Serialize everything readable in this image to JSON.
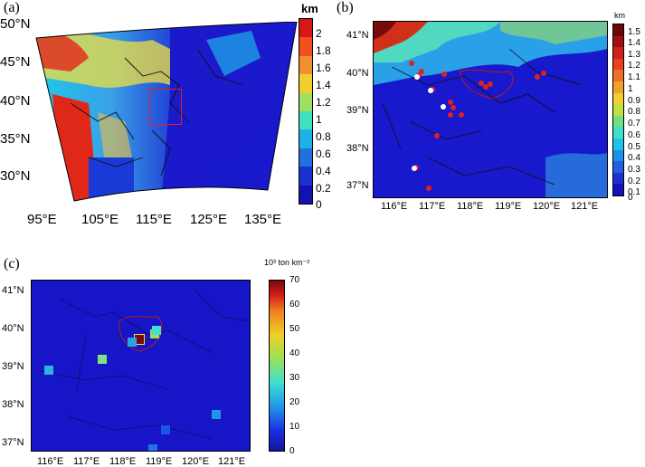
{
  "panels": {
    "a": {
      "label": "(a)",
      "unit": "km",
      "x_ticks": [
        "95°E",
        "105°E",
        "115°E",
        "125°E",
        "135°E"
      ],
      "y_ticks": [
        "50°N",
        "45°N",
        "40°N",
        "35°N",
        "30°N"
      ],
      "colorbar_ticks": [
        "2",
        "1.8",
        "1.6",
        "1.4",
        "1.2",
        "1",
        "0.8",
        "0.6",
        "0.4",
        "0.2",
        "0"
      ]
    },
    "b": {
      "label": "(b)",
      "unit": "km",
      "x_ticks": [
        "116°E",
        "117°E",
        "118°E",
        "119°E",
        "120°E",
        "121°E"
      ],
      "y_ticks": [
        "41°N",
        "40°N",
        "39°N",
        "38°N",
        "37°N"
      ],
      "colorbar_ticks": [
        "1.5",
        "1.4",
        "1.3",
        "1.2",
        "1.1",
        "1",
        "0.9",
        "0.8",
        "0.7",
        "0.6",
        "0.5",
        "0.4",
        "0.3",
        "0.2",
        "0.1",
        "0"
      ]
    },
    "c": {
      "label": "(c)",
      "unit": "10³ ton km⁻²",
      "x_ticks": [
        "116°E",
        "117°E",
        "118°E",
        "119°E",
        "120°E",
        "121°E"
      ],
      "y_ticks": [
        "41°N",
        "40°N",
        "39°N",
        "38°N",
        "37°N"
      ],
      "colorbar_ticks": [
        "70",
        "60",
        "50",
        "40",
        "30",
        "20",
        "10",
        "0"
      ]
    }
  },
  "colors": {
    "low": "#1616c8",
    "mid": "#20c8e8",
    "high": "#f0e020",
    "max": "#7a0a0a",
    "outline": "#e02020"
  },
  "chart_data": [
    {
      "type": "heatmap",
      "panel": "a",
      "x_ticks": [
        "95°E",
        "105°E",
        "115°E",
        "125°E",
        "135°E"
      ],
      "y_ticks": [
        "50°N",
        "45°N",
        "40°N",
        "35°N",
        "30°N"
      ],
      "colorbar": {
        "min": 0,
        "max": 2,
        "unit": "km"
      }
    },
    {
      "type": "heatmap",
      "panel": "b",
      "x_ticks": [
        "116°E",
        "117°E",
        "118°E",
        "119°E",
        "120°E",
        "121°E"
      ],
      "y_ticks": [
        "41°N",
        "40°N",
        "39°N",
        "38°N",
        "37°N"
      ],
      "colorbar": {
        "min": 0,
        "max": 1.5,
        "unit": "km"
      }
    },
    {
      "type": "heatmap",
      "panel": "c",
      "x_ticks": [
        "116°E",
        "117°E",
        "118°E",
        "119°E",
        "120°E",
        "121°E"
      ],
      "y_ticks": [
        "41°N",
        "40°N",
        "39°N",
        "38°N",
        "37°N"
      ],
      "colorbar": {
        "min": 0,
        "max": 70,
        "unit": "10³ ton km⁻²"
      },
      "cells": [
        {
          "lon": 118.2,
          "lat": 39.65,
          "value": 70
        },
        {
          "lon": 118.6,
          "lat": 39.8,
          "value": 38
        },
        {
          "lon": 118.65,
          "lat": 39.9,
          "value": 28
        },
        {
          "lon": 117.2,
          "lat": 39.15,
          "value": 35
        },
        {
          "lon": 118.0,
          "lat": 39.6,
          "value": 20
        },
        {
          "lon": 115.75,
          "lat": 38.85,
          "value": 22
        },
        {
          "lon": 120.25,
          "lat": 37.7,
          "value": 18
        },
        {
          "lon": 118.55,
          "lat": 36.8,
          "value": 15
        },
        {
          "lon": 118.9,
          "lat": 37.3,
          "value": 12
        }
      ]
    }
  ]
}
